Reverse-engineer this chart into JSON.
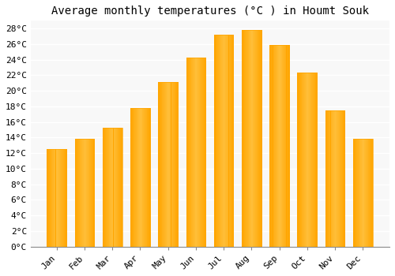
{
  "months": [
    "Jan",
    "Feb",
    "Mar",
    "Apr",
    "May",
    "Jun",
    "Jul",
    "Aug",
    "Sep",
    "Oct",
    "Nov",
    "Dec"
  ],
  "values": [
    12.5,
    13.8,
    15.3,
    17.8,
    21.1,
    24.3,
    27.2,
    27.8,
    25.9,
    22.3,
    17.5,
    13.8
  ],
  "bar_color_light": "#FFD060",
  "bar_color_dark": "#FFA500",
  "background_color": "#FFFFFF",
  "grid_color": "#FFFFFF",
  "plot_bg_color": "#F8F8F8",
  "title": "Average monthly temperatures (°C ) in Houmt Souk",
  "title_fontsize": 10,
  "tick_label_fontsize": 8,
  "ylim": [
    0,
    29
  ],
  "yticks": [
    0,
    2,
    4,
    6,
    8,
    10,
    12,
    14,
    16,
    18,
    20,
    22,
    24,
    26,
    28
  ],
  "font_family": "monospace",
  "bar_width": 0.7
}
